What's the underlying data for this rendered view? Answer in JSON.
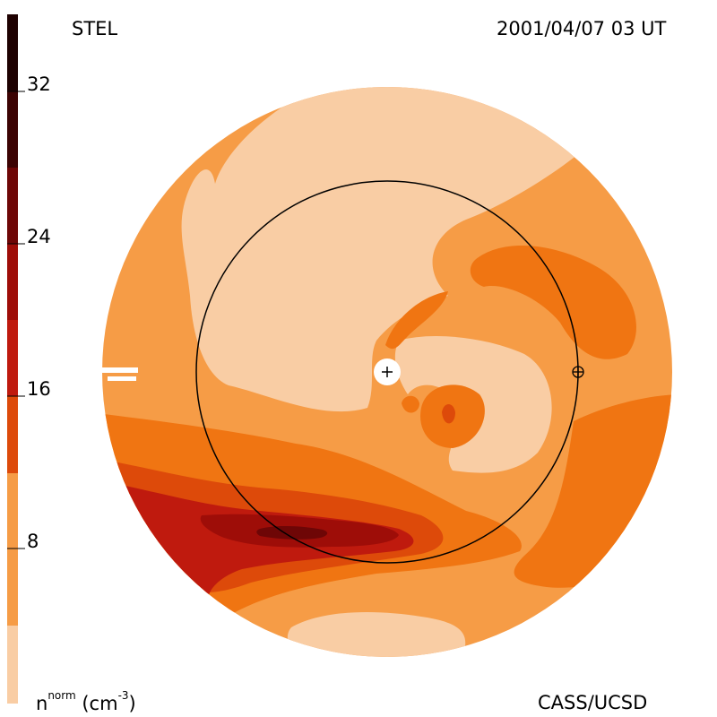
{
  "header": {
    "source": "STEL",
    "timestamp": "2001/04/07 03 UT"
  },
  "footer": {
    "quantity_main": "n",
    "quantity_sup": "norm",
    "quantity_unit": "(cm",
    "quantity_unit_exp": "-3",
    "quantity_unit_close": ")",
    "credit": "CASS/UCSD"
  },
  "colorbar": {
    "ticks": [
      "32",
      "24",
      "16",
      "8"
    ],
    "range": [
      0,
      36
    ],
    "colors": {
      "level_0": "#f9cda4",
      "level_1": "#f69c46",
      "level_2": "#f07512",
      "level_3": "#dd4a0a",
      "level_4": "#bf1a0e",
      "level_5": "#9e0d08",
      "level_6": "#6e0606",
      "level_7": "#3c0303",
      "level_8": "#1e0101"
    }
  },
  "map": {
    "sun_marker": "plus-in-circle",
    "earth_marker": "circled-plus",
    "reference_circle": "1 AU orbit"
  }
}
